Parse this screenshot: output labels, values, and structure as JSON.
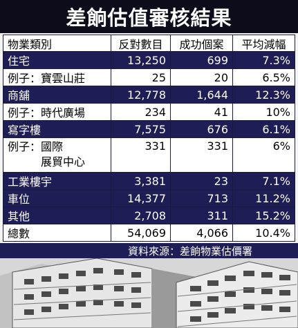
{
  "title": "差餉估值審核結果",
  "columns": [
    "物業類別",
    "反對數目",
    "成功個案",
    "平均減幅"
  ],
  "rows": [
    {
      "category": "住宅",
      "objections": "13,250",
      "successful": "699",
      "avg_reduction": "7.3%",
      "style": "dark"
    },
    {
      "category": "例子：寶雲山莊",
      "objections": "25",
      "successful": "20",
      "avg_reduction": "6.5%",
      "style": "light"
    },
    {
      "category": "商舖",
      "objections": "12,778",
      "successful": "1,644",
      "avg_reduction": "12.3%",
      "style": "dark"
    },
    {
      "category": "例子：時代廣場",
      "objections": "234",
      "successful": "41",
      "avg_reduction": "10%",
      "style": "light"
    },
    {
      "category": "寫字樓",
      "objections": "7,575",
      "successful": "676",
      "avg_reduction": "6.1%",
      "style": "dark"
    },
    {
      "category": "例子：國際\n　　　展貿中心",
      "objections": "331",
      "successful": "331",
      "avg_reduction": "6%",
      "style": "light tall"
    },
    {
      "category": "工業樓宇",
      "objections": "3,381",
      "successful": "23",
      "avg_reduction": "7.1%",
      "style": "dark"
    },
    {
      "category": "車位",
      "objections": "14,377",
      "successful": "713",
      "avg_reduction": "11.2%",
      "style": "dark"
    },
    {
      "category": "其他",
      "objections": "2,708",
      "successful": "311",
      "avg_reduction": "15.2%",
      "style": "dark"
    },
    {
      "category": "總數",
      "objections": "54,069",
      "successful": "4,066",
      "avg_reduction": "10.4%",
      "style": "light"
    }
  ],
  "source": "資料來源：差餉物業估價署",
  "colors": {
    "header_bg": "#0c0c1a",
    "dark_row": "#1f1d55",
    "light_row": "#ffffff"
  }
}
